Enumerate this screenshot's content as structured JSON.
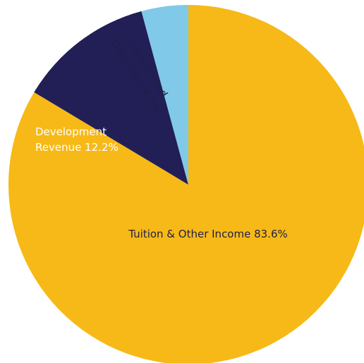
{
  "chart_data": {
    "type": "pie",
    "slices": [
      {
        "label_lines": [
          "Tuition & Other Income 83.6%"
        ],
        "value": 83.6,
        "color": "#F7B917",
        "label_color": "#1F1F4A"
      },
      {
        "label_lines": [
          "Development",
          "Revenue 12.2%"
        ],
        "value": 12.2,
        "color": "#211F55",
        "label_color": "#FFFFFF"
      },
      {
        "label_lines": [
          "Unrestricted",
          "Donations 4.2%"
        ],
        "value": 4.2,
        "color": "#80C9E8",
        "label_color": "#1F1F4A"
      }
    ]
  }
}
